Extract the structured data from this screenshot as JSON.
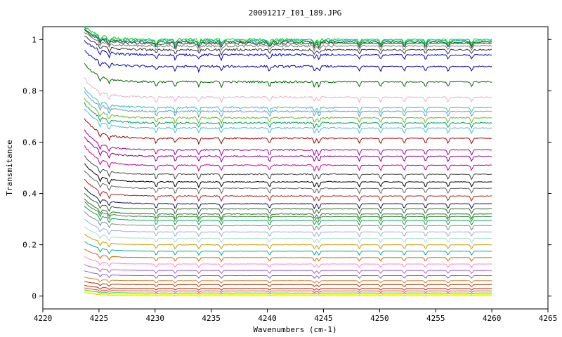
{
  "chart_data": {
    "type": "line",
    "title": "20091217_I01_189.JPG",
    "xlabel": "Wavenumbers (cm-1)",
    "ylabel": "Transmitance",
    "xlim": [
      4220,
      4265
    ],
    "ylim": [
      -0.05,
      1.05
    ],
    "x_ticks": [
      "4220",
      "4225",
      "4230",
      "4235",
      "4240",
      "4245",
      "4250",
      "4255",
      "4260",
      "4265"
    ],
    "y_ticks": [
      "0",
      "0.2",
      "0.4",
      "0.6",
      "0.8",
      "1"
    ],
    "grid": false,
    "legend": "none",
    "x_range_data": [
      4223.7,
      4260.0
    ],
    "absorption_lines_cm1": [
      4225.1,
      4225.9,
      4230.1,
      4231.8,
      4233.9,
      4235.9,
      4240.2,
      4244.2,
      4244.6,
      4248.2,
      4250.1,
      4252.2,
      4254.1,
      4256.1,
      4258.2
    ],
    "series_final_transmittance": [
      1.0,
      0.995,
      0.99,
      0.985,
      0.975,
      0.96,
      0.94,
      0.895,
      0.835,
      0.775,
      0.735,
      0.72,
      0.695,
      0.675,
      0.655,
      0.615,
      0.57,
      0.545,
      0.51,
      0.475,
      0.445,
      0.42,
      0.39,
      0.36,
      0.34,
      0.32,
      0.31,
      0.295,
      0.275,
      0.25,
      0.225,
      0.2,
      0.175,
      0.15,
      0.125,
      0.1,
      0.08,
      0.06,
      0.045,
      0.03,
      0.02,
      0.012,
      0.006,
      0.002
    ],
    "series_colors": [
      "#00cc00",
      "#00aaaa",
      "#008800",
      "#444444",
      "#7f7f7f",
      "#333333",
      "#0000cc",
      "#0000aa",
      "#006600",
      "#e8b0c8",
      "#40c0a0",
      "#6699dd",
      "#66bb22",
      "#00a060",
      "#55bbcc",
      "#990000",
      "#990099",
      "#880088",
      "#cc0099",
      "#444444",
      "#000000",
      "#666666",
      "#aa2222",
      "#111155",
      "#336633",
      "#227722",
      "#448844",
      "#00aa55",
      "#888888",
      "#99aaee",
      "#aaddcc",
      "#cc9900",
      "#00aaaa",
      "#cc6600",
      "#ff88cc",
      "#aa66cc",
      "#8866cc",
      "#cc8833",
      "#aa3300",
      "#cc2200",
      "#ff3333",
      "#00cc66",
      "#ffff00",
      "#ffcc00"
    ]
  }
}
